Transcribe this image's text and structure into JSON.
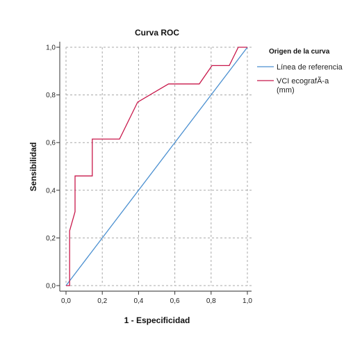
{
  "chart_data": {
    "type": "line",
    "title": "Curva ROC",
    "xlabel": "1 - Especificidad",
    "ylabel": "Sensibilidad",
    "xlim": [
      0,
      1
    ],
    "ylim": [
      0,
      1
    ],
    "x_ticks": [
      "0,0",
      "0,2",
      "0,4",
      "0,6",
      "0,8",
      "1,0"
    ],
    "y_ticks": [
      "0,0",
      "0,2",
      "0,4",
      "0,6",
      "0,8",
      "1,0"
    ],
    "grid": true,
    "legend": {
      "title": "Origen de la curva",
      "placement": "right",
      "entries": [
        "Línea de referencia",
        "VCI ecografÃ-a (mm)"
      ]
    },
    "series": [
      {
        "name": "Línea de referencia",
        "color": "#4a8fd0",
        "points": [
          [
            0,
            0
          ],
          [
            1,
            1
          ]
        ]
      },
      {
        "name": "VCI ecografÃ-a (mm)",
        "color": "#c8174a",
        "points": [
          [
            0.0,
            0.0
          ],
          [
            0.02,
            0.0
          ],
          [
            0.02,
            0.23
          ],
          [
            0.05,
            0.31
          ],
          [
            0.05,
            0.46
          ],
          [
            0.145,
            0.46
          ],
          [
            0.145,
            0.615
          ],
          [
            0.295,
            0.615
          ],
          [
            0.395,
            0.77
          ],
          [
            0.565,
            0.846
          ],
          [
            0.735,
            0.846
          ],
          [
            0.805,
            0.923
          ],
          [
            0.9,
            0.923
          ],
          [
            0.95,
            1.0
          ],
          [
            1.0,
            1.0
          ]
        ]
      }
    ]
  }
}
